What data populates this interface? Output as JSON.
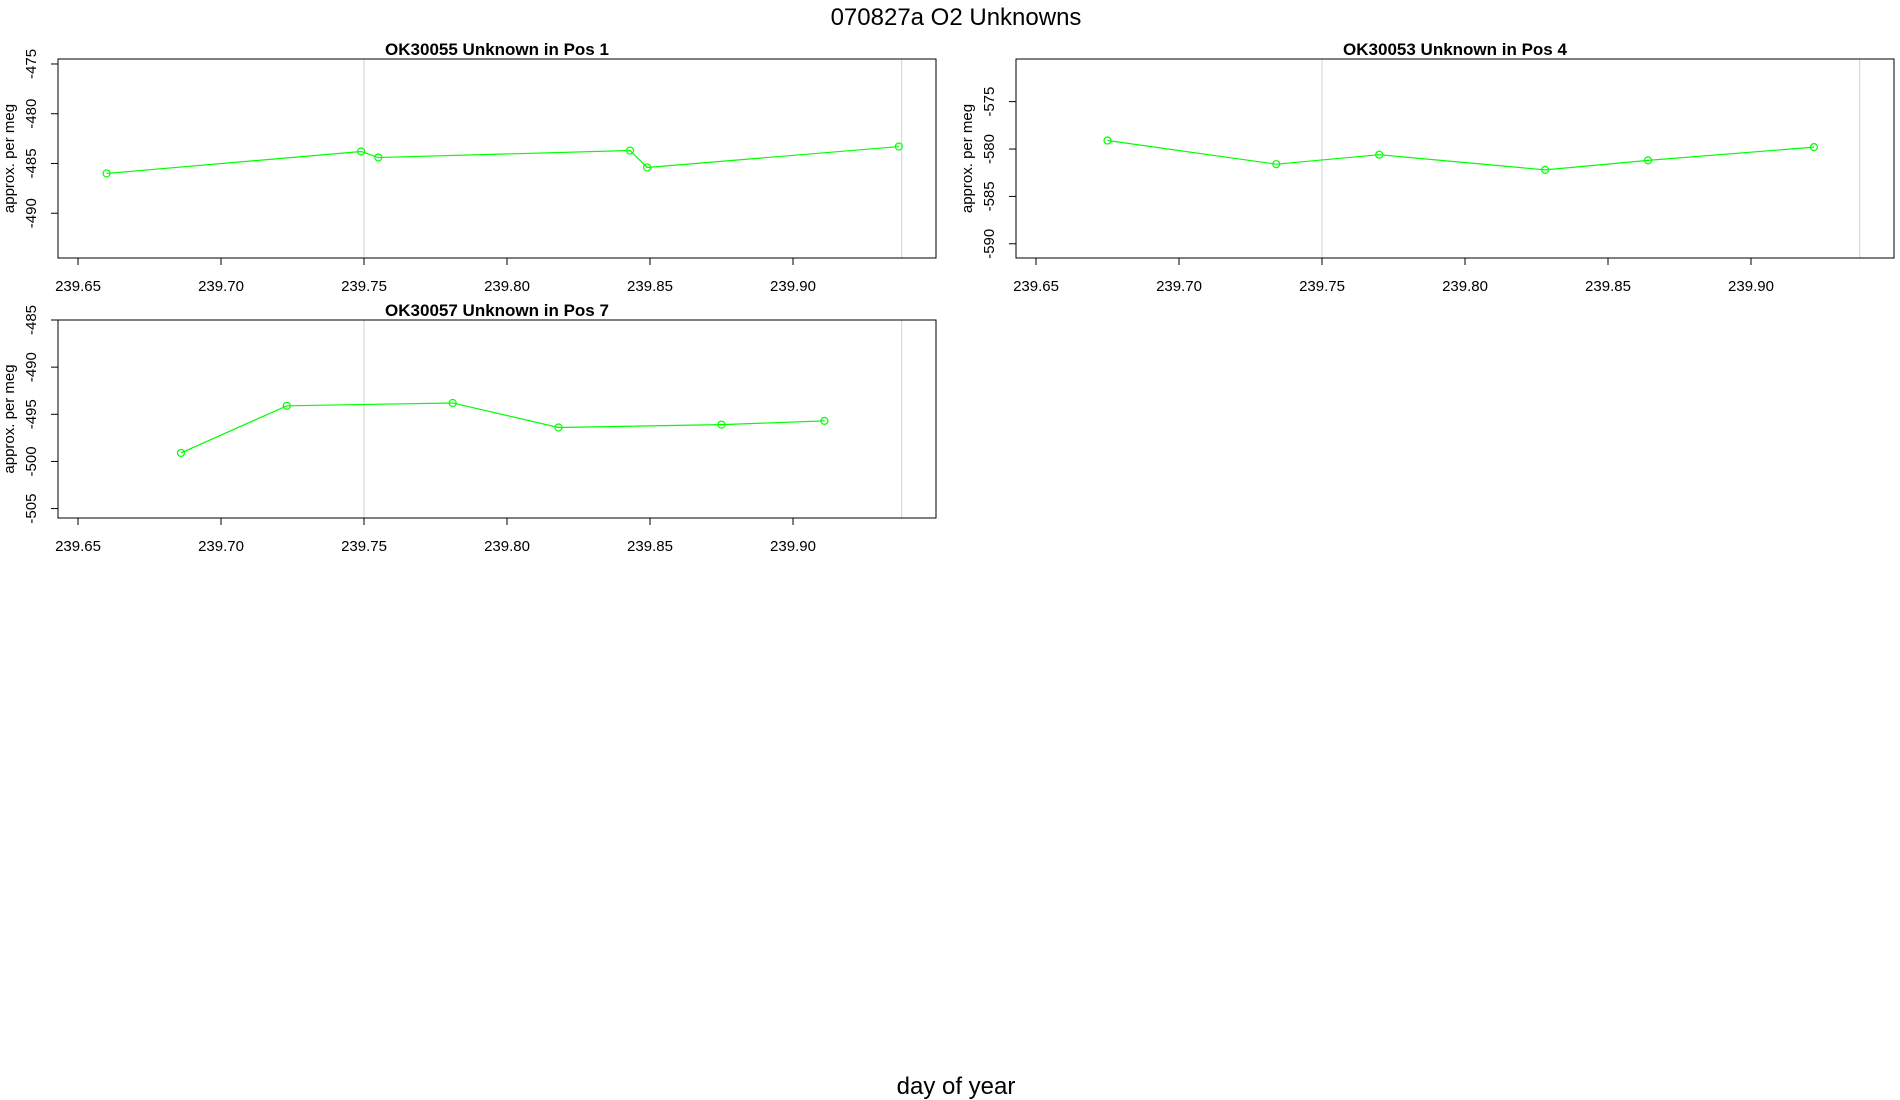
{
  "figure": {
    "title": "070827a  O2 Unknowns",
    "xlabel": "day of year"
  },
  "colors": {
    "series": "#00ff00",
    "frame": "#000000",
    "vline": "#d3d3d3"
  },
  "chart_data": [
    {
      "type": "line",
      "title": "OK30055    Unknown in Pos 1",
      "xlabel": "",
      "ylabel": "approx. per meg",
      "xlim": [
        239.643,
        239.95
      ],
      "ylim": [
        -494.5,
        -474.5
      ],
      "x_ticks": [
        239.65,
        239.7,
        239.75,
        239.8,
        239.85,
        239.9
      ],
      "x_tick_labels": [
        "239.65",
        "239.70",
        "239.75",
        "239.80",
        "239.85",
        "239.90"
      ],
      "y_ticks": [
        -475,
        -480,
        -485,
        -490
      ],
      "y_tick_labels": [
        "-475",
        "-480",
        "-485",
        "-490"
      ],
      "vlines": [
        239.75,
        239.938
      ],
      "series": [
        {
          "x": [
            239.66,
            239.749,
            239.755,
            239.843,
            239.849,
            239.937
          ],
          "y": [
            -486.0,
            -483.8,
            -484.4,
            -483.7,
            -485.4,
            -483.3
          ]
        }
      ]
    },
    {
      "type": "line",
      "title": "OK30053    Unknown in Pos 4",
      "xlabel": "",
      "ylabel": "approx. per meg",
      "xlim": [
        239.643,
        239.95
      ],
      "ylim": [
        -591.5,
        -570.5
      ],
      "x_ticks": [
        239.65,
        239.7,
        239.75,
        239.8,
        239.85,
        239.9
      ],
      "x_tick_labels": [
        "239.65",
        "239.70",
        "239.75",
        "239.80",
        "239.85",
        "239.90"
      ],
      "y_ticks": [
        -575,
        -580,
        -585,
        -590
      ],
      "y_tick_labels": [
        "-575",
        "-580",
        "-585",
        "-590"
      ],
      "vlines": [
        239.75,
        239.938
      ],
      "series": [
        {
          "x": [
            239.675,
            239.734,
            239.77,
            239.828,
            239.864,
            239.922
          ],
          "y": [
            -579.1,
            -581.6,
            -580.6,
            -582.2,
            -581.2,
            -579.8
          ]
        }
      ]
    },
    {
      "type": "line",
      "title": "OK30057    Unknown in Pos 7",
      "xlabel": "",
      "ylabel": "approx. per meg",
      "xlim": [
        239.643,
        239.95
      ],
      "ylim": [
        -506.0,
        -485.0
      ],
      "x_ticks": [
        239.65,
        239.7,
        239.75,
        239.8,
        239.85,
        239.9
      ],
      "x_tick_labels": [
        "239.65",
        "239.70",
        "239.75",
        "239.80",
        "239.85",
        "239.90"
      ],
      "y_ticks": [
        -485,
        -490,
        -495,
        -500,
        -505
      ],
      "y_tick_labels": [
        "-485",
        "-490",
        "-495",
        "-500",
        "-505"
      ],
      "vlines": [
        239.75,
        239.938
      ],
      "series": [
        {
          "x": [
            239.686,
            239.723,
            239.781,
            239.818,
            239.875,
            239.911
          ],
          "y": [
            -499.1,
            -494.1,
            -493.8,
            -496.4,
            -496.1,
            -495.7
          ]
        }
      ]
    }
  ]
}
